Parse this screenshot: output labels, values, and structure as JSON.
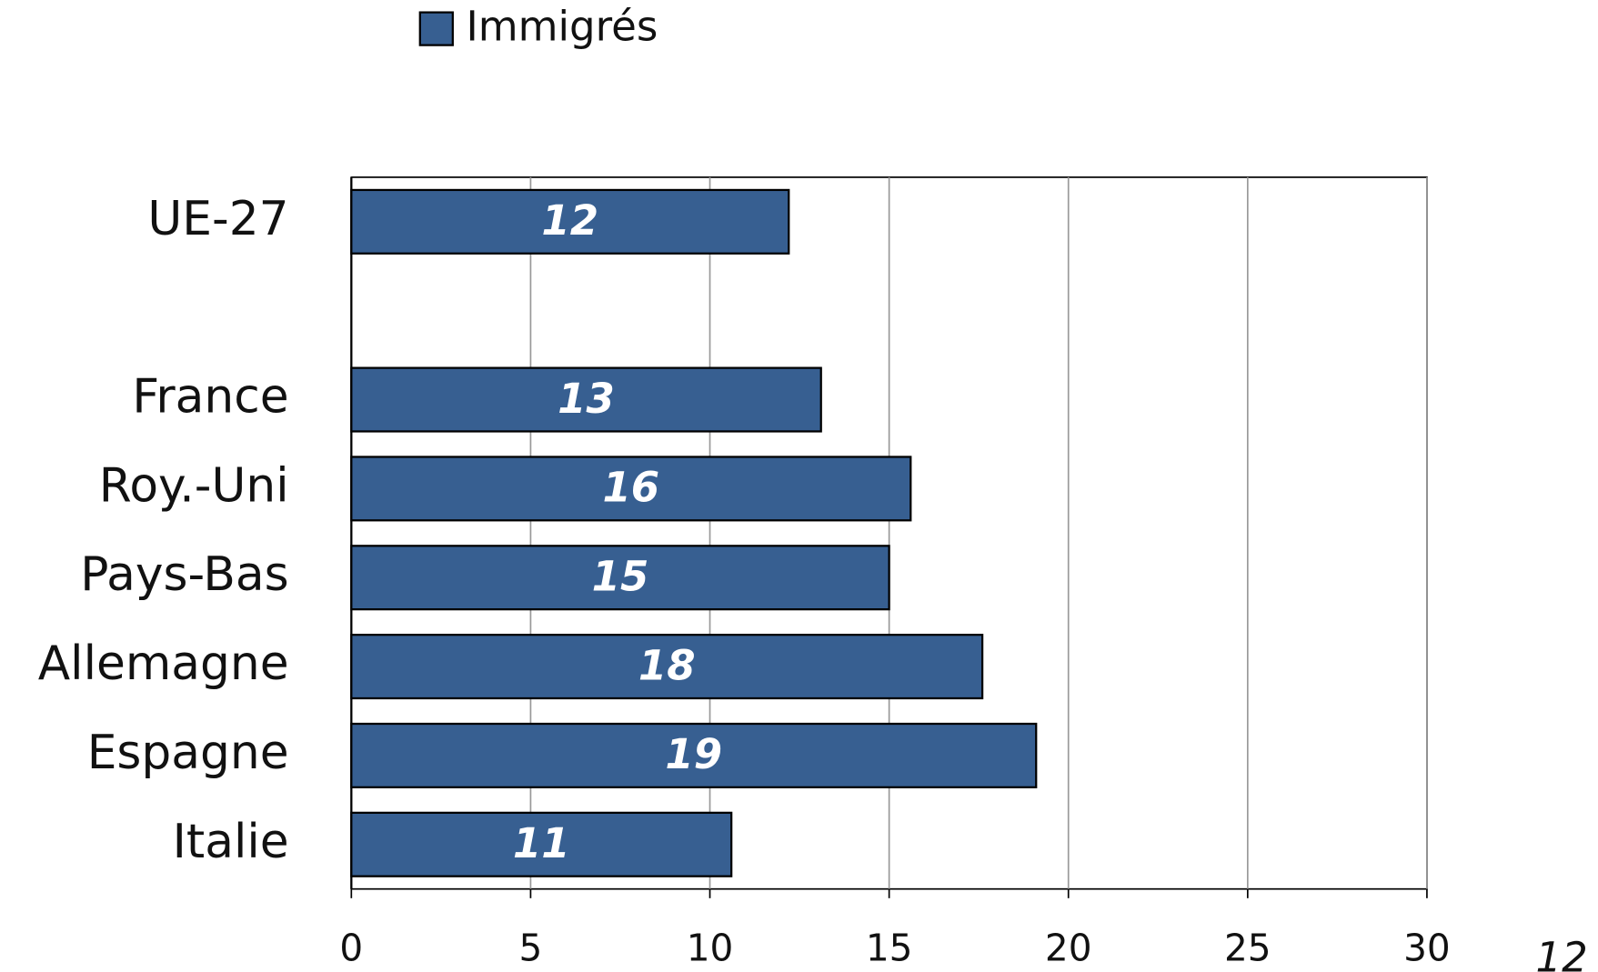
{
  "chart_data": {
    "type": "bar",
    "orientation": "horizontal",
    "legend": "top",
    "categories": [
      "UE-27",
      null,
      "France",
      "Roy.-Uni",
      "Pays-Bas",
      "Allemagne",
      "Espagne",
      "Italie"
    ],
    "series": [
      {
        "name": "Immigrés",
        "color": "#375f91",
        "values": [
          12.2,
          null,
          13.1,
          15.6,
          15.0,
          17.6,
          19.1,
          10.6
        ],
        "value_labels": [
          "12",
          null,
          "13",
          "16",
          "15",
          "18",
          "19",
          "11"
        ]
      }
    ],
    "xlim": [
      0,
      30
    ],
    "xticks": [
      0,
      5,
      10,
      15,
      20,
      25,
      30
    ],
    "grid": true,
    "annotation": "12"
  }
}
